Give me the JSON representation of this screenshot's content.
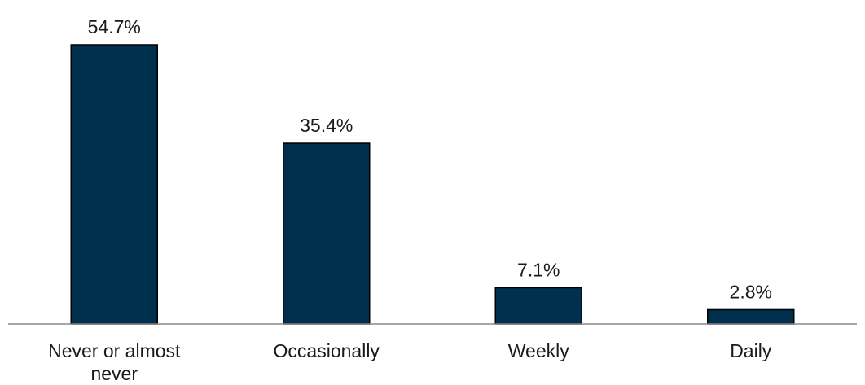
{
  "chart_data": {
    "type": "bar",
    "categories": [
      "Never or almost never",
      "Occasionally",
      "Weekly",
      "Daily"
    ],
    "category_label_lines": [
      [
        "Never or almost",
        "never"
      ],
      [
        "Occasionally"
      ],
      [
        "Weekly"
      ],
      [
        "Daily"
      ]
    ],
    "values": [
      54.7,
      35.4,
      7.1,
      2.8
    ],
    "data_labels": [
      "54.7%",
      "35.4%",
      "7.1%",
      "2.8%"
    ],
    "title": "",
    "xlabel": "",
    "ylabel": "",
    "ylim": [
      0,
      60
    ],
    "grid": false,
    "legend": "none",
    "colors": {
      "bar": "#00304d",
      "bar_edge": "#000000",
      "axis": "#888888"
    }
  }
}
